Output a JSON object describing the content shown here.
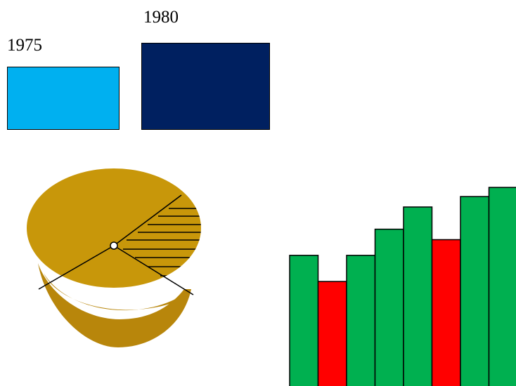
{
  "legend": [
    {
      "label": "1975",
      "color": "#00B0F0"
    },
    {
      "label": "1980",
      "color": "#002060"
    }
  ],
  "pie": {
    "top_color": "#C8970A",
    "side_color": "#B8860B",
    "hatched_fraction": 0.17,
    "hatch_pattern": "horizontal-lines"
  },
  "bars": {
    "values": [
      10,
      8,
      10,
      12,
      13.7,
      11.2,
      14.5,
      15.2
    ],
    "colors": [
      "#00B050",
      "#FF0000",
      "#00B050",
      "#00B050",
      "#00B050",
      "#FF0000",
      "#00B050",
      "#00B050"
    ]
  }
}
